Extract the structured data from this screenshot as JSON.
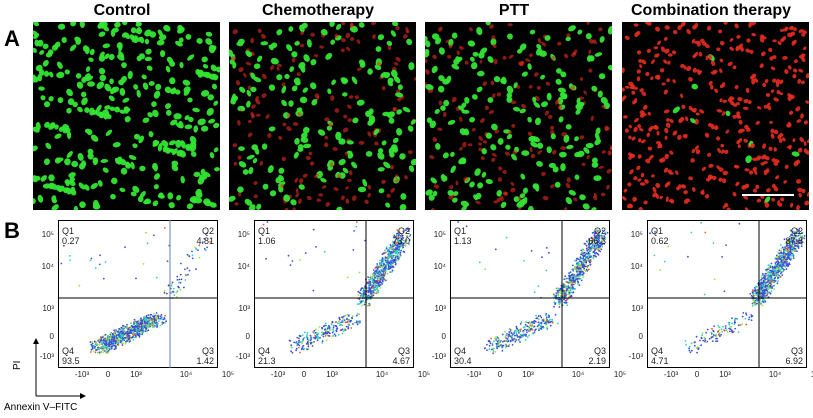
{
  "figure": {
    "panel_a_label": "A",
    "panel_b_label": "B",
    "groups": [
      {
        "title": "Control",
        "green_fraction": 1.0
      },
      {
        "title": "Chemotherapy",
        "green_fraction": 0.5
      },
      {
        "title": "PTT",
        "green_fraction": 0.55
      },
      {
        "title": "Combination therapy",
        "green_fraction": 0.02
      }
    ],
    "colors": {
      "live_cells": "#33e633",
      "dead_cells": "#e62b1f",
      "background": "#000000"
    },
    "flow": {
      "y_axis_title": "PI",
      "x_axis_title": "Annexin V–FITC",
      "y_ticks": [
        "10⁵",
        "10⁴",
        "10³",
        "0",
        "-10³"
      ],
      "x_ticks": [
        "-10³",
        "0",
        "10³",
        "10⁴",
        "10⁵"
      ],
      "plots": [
        {
          "q1": "Q1",
          "q1v": "0.27",
          "q2": "Q2",
          "q2v": "4.81",
          "q3": "Q3",
          "q3v": "1.42",
          "q4": "Q4",
          "q4v": "93.5"
        },
        {
          "q1": "Q1",
          "q1v": "1.06",
          "q2": "Q2",
          "q2v": "73.0",
          "q3": "Q3",
          "q3v": "4.67",
          "q4": "Q4",
          "q4v": "21.3"
        },
        {
          "q1": "Q1",
          "q1v": "1.13",
          "q2": "Q2",
          "q2v": "66.3",
          "q3": "Q3",
          "q3v": "2.19",
          "q4": "Q4",
          "q4v": "30.4"
        },
        {
          "q1": "Q1",
          "q1v": "0.62",
          "q2": "Q2",
          "q2v": "87.8",
          "q3": "Q3",
          "q3v": "6.92",
          "q4": "Q4",
          "q4v": "4.71"
        }
      ]
    }
  }
}
